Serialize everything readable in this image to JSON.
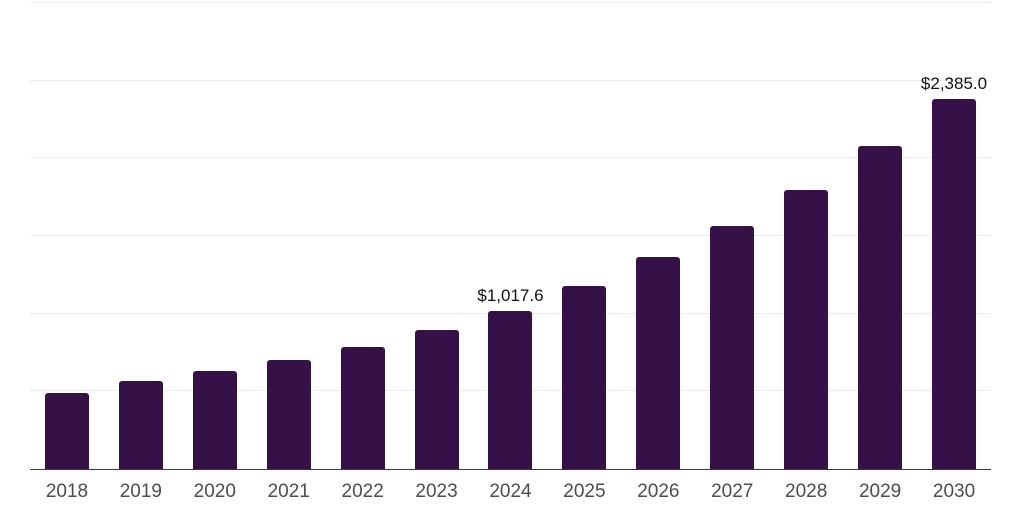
{
  "chart_data": {
    "type": "bar",
    "title": "",
    "categories": [
      "2018",
      "2019",
      "2020",
      "2021",
      "2022",
      "2023",
      "2024",
      "2025",
      "2026",
      "2027",
      "2028",
      "2029",
      "2030"
    ],
    "values": [
      491,
      568,
      632,
      702,
      786,
      895,
      1017.6,
      1177,
      1363,
      1562,
      1799,
      2082,
      2385
    ],
    "point_labels": [
      "",
      "",
      "",
      "",
      "",
      "",
      "$1,017.6",
      "",
      "",
      "",
      "",
      "",
      "$2,385.0"
    ],
    "xlabel": "",
    "ylabel": "",
    "ylim": [
      0,
      3000
    ],
    "grid_step": 500,
    "grid_on": true,
    "legend": "none",
    "colors": {
      "bar": "#351148",
      "grid": "#ececec",
      "axis": "#3a3a3a",
      "tick_label": "#4d4d4f",
      "value_label": "#111111",
      "background": "#ffffff"
    }
  }
}
